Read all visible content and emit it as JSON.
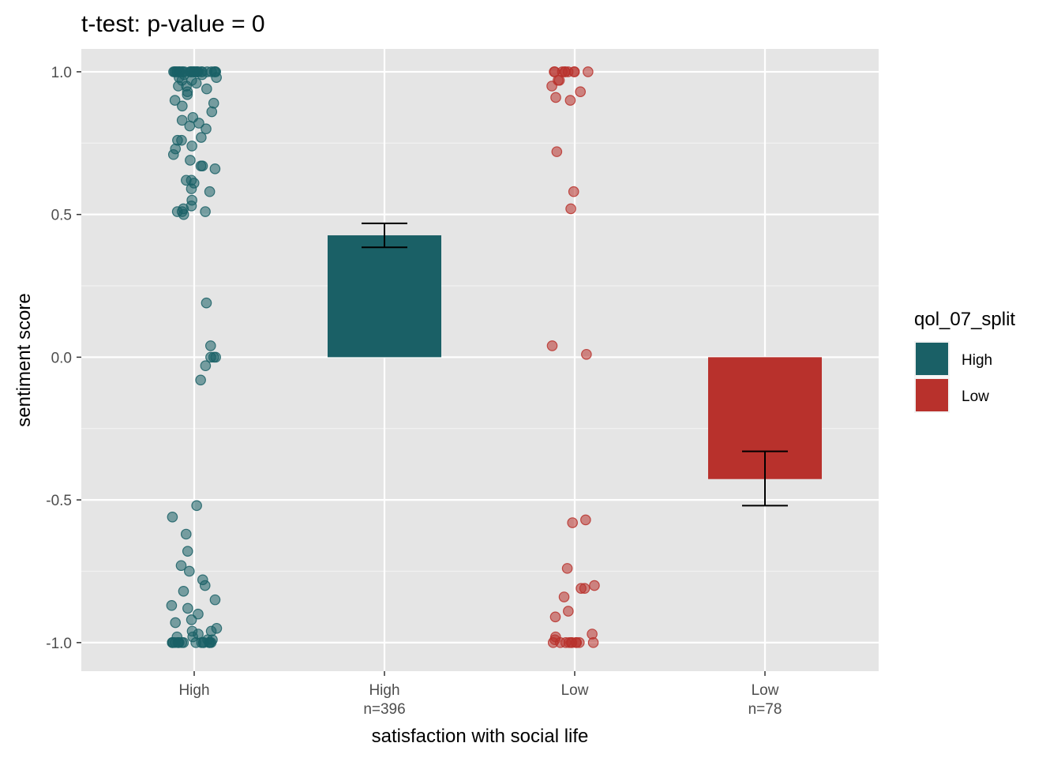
{
  "chart_data": {
    "type": "bar",
    "title": "t-test: p-value = 0",
    "xlabel": "satisfaction with social life",
    "ylabel": "sentiment score",
    "ylim": [
      -1.1,
      1.08
    ],
    "yticks": [
      "-1.0",
      "-0.5",
      "0.0",
      "0.5",
      "1.0"
    ],
    "ytick_values": [
      -1.0,
      -0.5,
      0.0,
      0.5,
      1.0
    ],
    "grid": true,
    "categories": [
      {
        "label": "High",
        "sublabel": ""
      },
      {
        "label": "High",
        "sublabel": "n=396"
      },
      {
        "label": "Low",
        "sublabel": ""
      },
      {
        "label": "Low",
        "sublabel": "n=78"
      }
    ],
    "bars": [
      {
        "category_index": 1,
        "group": "High",
        "mean": 0.427,
        "ci_low": 0.385,
        "ci_high": 0.469
      },
      {
        "category_index": 3,
        "group": "Low",
        "mean": -0.427,
        "ci_low": -0.52,
        "ci_high": -0.33
      }
    ],
    "colors": {
      "High": "#1a6066",
      "Low": "#b8312c"
    },
    "legend": {
      "title": "qol_07_split",
      "placement": "right",
      "entries": [
        "High",
        "Low"
      ]
    },
    "jitter_groups": [
      {
        "category_index": 0,
        "group": "High",
        "points": [
          1.0,
          1.0,
          1.0,
          1.0,
          1.0,
          1.0,
          1.0,
          1.0,
          1.0,
          1.0,
          1.0,
          1.0,
          1.0,
          1.0,
          1.0,
          1.0,
          1.0,
          1.0,
          1.0,
          1.0,
          1.0,
          1.0,
          1.0,
          1.0,
          1.0,
          1.0,
          1.0,
          1.0,
          1.0,
          1.0,
          0.99,
          0.99,
          0.98,
          0.98,
          0.97,
          0.97,
          0.96,
          0.95,
          0.95,
          0.94,
          0.93,
          0.92,
          0.9,
          0.89,
          0.88,
          0.86,
          0.84,
          0.83,
          0.82,
          0.81,
          0.8,
          0.77,
          0.76,
          0.76,
          0.74,
          0.73,
          0.71,
          0.69,
          0.67,
          0.67,
          0.66,
          0.62,
          0.62,
          0.61,
          0.59,
          0.58,
          0.55,
          0.53,
          0.52,
          0.51,
          0.51,
          0.51,
          0.5,
          0.19,
          0.04,
          0.0,
          0.0,
          0.0,
          -0.03,
          -0.08,
          -0.52,
          -0.56,
          -0.62,
          -0.68,
          -0.73,
          -0.75,
          -0.78,
          -0.8,
          -0.82,
          -0.85,
          -0.87,
          -0.88,
          -0.9,
          -0.92,
          -0.93,
          -0.95,
          -0.96,
          -0.96,
          -0.97,
          -0.98,
          -0.98,
          -0.99,
          -0.99,
          -1.0,
          -1.0,
          -1.0,
          -1.0,
          -1.0,
          -1.0,
          -1.0,
          -1.0,
          -1.0,
          -1.0,
          -1.0,
          -1.0,
          -1.0,
          -1.0,
          -1.0,
          -1.0,
          -1.0
        ]
      },
      {
        "category_index": 2,
        "group": "Low",
        "points": [
          1.0,
          1.0,
          1.0,
          1.0,
          1.0,
          1.0,
          1.0,
          1.0,
          1.0,
          0.97,
          0.97,
          0.95,
          0.93,
          0.91,
          0.9,
          0.72,
          0.58,
          0.52,
          0.04,
          0.01,
          -0.58,
          -0.57,
          -0.74,
          -0.8,
          -0.81,
          -0.81,
          -0.84,
          -0.89,
          -0.91,
          -0.97,
          -0.98,
          -0.99,
          -1.0,
          -1.0,
          -1.0,
          -1.0,
          -1.0,
          -1.0,
          -1.0,
          -1.0,
          -1.0,
          -1.0
        ]
      }
    ]
  }
}
